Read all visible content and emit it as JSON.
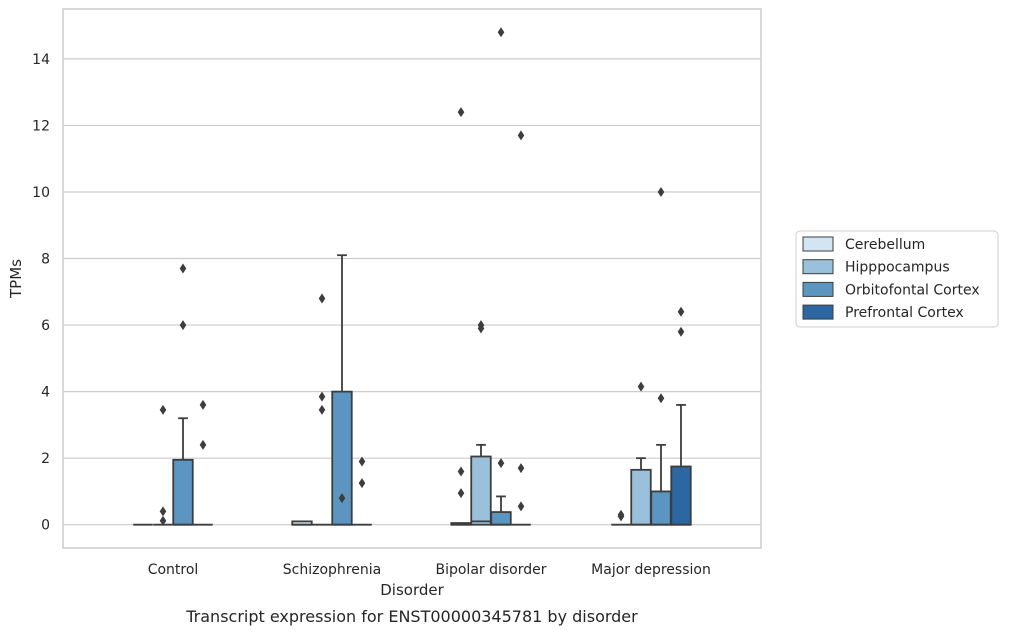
{
  "chart_data": {
    "type": "box",
    "title": "",
    "caption": "Transcript expression for ENST00000345781 by disorder",
    "xlabel": "Disorder",
    "ylabel": "TPMs",
    "ylim": [
      -0.7,
      15.5
    ],
    "yticks": [
      0,
      2,
      4,
      6,
      8,
      10,
      12,
      14
    ],
    "grid": "horizontal",
    "legend_position": "right",
    "categories": [
      "Control",
      "Schizophrenia",
      "Bipolar disorder",
      "Major depression"
    ],
    "series": [
      {
        "name": "Cerebellum",
        "color": "#d3e4f3",
        "boxes": [
          {
            "q1": 0,
            "median": 0,
            "q3": 0,
            "whisker_low": 0,
            "whisker_high": 0,
            "outliers": []
          },
          {
            "q1": 0,
            "median": 0,
            "q3": 0.1,
            "whisker_low": 0,
            "whisker_high": 0.1,
            "outliers": []
          },
          {
            "q1": 0,
            "median": 0,
            "q3": 0.05,
            "whisker_low": 0,
            "whisker_high": 0.05,
            "outliers": [
              0.95,
              1.6,
              12.4
            ]
          },
          {
            "q1": 0,
            "median": 0,
            "q3": 0,
            "whisker_low": 0,
            "whisker_high": 0,
            "outliers": [
              0.25,
              0.3
            ]
          }
        ]
      },
      {
        "name": "Hipppocampus",
        "color": "#9ac1dc",
        "boxes": [
          {
            "q1": 0,
            "median": 0,
            "q3": 0,
            "whisker_low": 0,
            "whisker_high": 0,
            "outliers": [
              0.12,
              0.4,
              3.45
            ]
          },
          {
            "q1": 0,
            "median": 0,
            "q3": 0,
            "whisker_low": 0,
            "whisker_high": 0,
            "outliers": [
              3.45,
              3.85,
              6.8
            ]
          },
          {
            "q1": 0,
            "median": 0.1,
            "q3": 2.05,
            "whisker_low": 0,
            "whisker_high": 2.4,
            "outliers": [
              5.9,
              6.0
            ]
          },
          {
            "q1": 0,
            "median": 0,
            "q3": 1.65,
            "whisker_low": 0,
            "whisker_high": 2.0,
            "outliers": [
              4.15
            ]
          }
        ]
      },
      {
        "name": "Orbitofontal Cortex",
        "color": "#5a96c1",
        "boxes": [
          {
            "q1": 0,
            "median": 0,
            "q3": 1.95,
            "whisker_low": 0,
            "whisker_high": 3.2,
            "outliers": [
              6.0,
              7.7
            ]
          },
          {
            "q1": 0,
            "median": 0,
            "q3": 4.0,
            "whisker_low": 0,
            "whisker_high": 8.1,
            "outliers": [
              0.8
            ]
          },
          {
            "q1": 0,
            "median": 0,
            "q3": 0.38,
            "whisker_low": 0,
            "whisker_high": 0.85,
            "outliers": [
              1.85,
              14.8
            ]
          },
          {
            "q1": 0,
            "median": 0,
            "q3": 1.0,
            "whisker_low": 0,
            "whisker_high": 2.4,
            "outliers": [
              3.8,
              10.0
            ]
          }
        ]
      },
      {
        "name": "Prefrontal Cortex",
        "color": "#2a67a3",
        "boxes": [
          {
            "q1": 0,
            "median": 0,
            "q3": 0,
            "whisker_low": 0,
            "whisker_high": 0,
            "outliers": [
              2.4,
              3.6
            ]
          },
          {
            "q1": 0,
            "median": 0,
            "q3": 0,
            "whisker_low": 0,
            "whisker_high": 0,
            "outliers": [
              1.25,
              1.9
            ]
          },
          {
            "q1": 0,
            "median": 0,
            "q3": 0,
            "whisker_low": 0,
            "whisker_high": 0,
            "outliers": [
              0.55,
              1.7,
              11.7
            ]
          },
          {
            "q1": 0,
            "median": 0,
            "q3": 1.75,
            "whisker_low": 0,
            "whisker_high": 3.6,
            "outliers": [
              5.8,
              6.4
            ]
          }
        ]
      }
    ]
  }
}
